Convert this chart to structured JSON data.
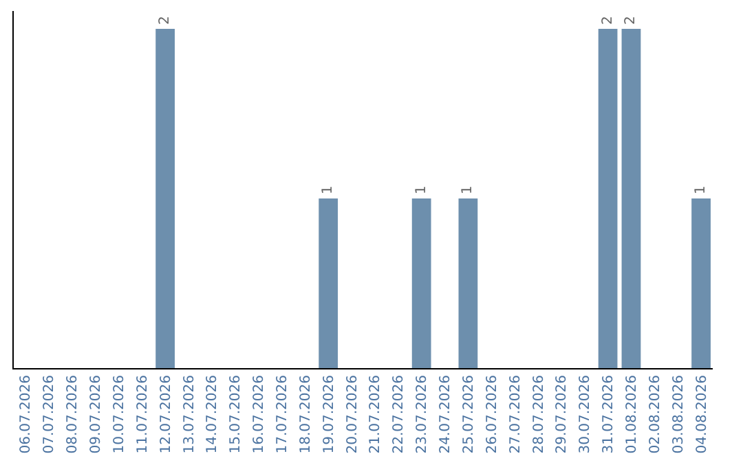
{
  "chart_data": {
    "type": "bar",
    "categories": [
      "06.07.2026",
      "07.07.2026",
      "08.07.2026",
      "09.07.2026",
      "10.07.2026",
      "11.07.2026",
      "12.07.2026",
      "13.07.2026",
      "14.07.2026",
      "15.07.2026",
      "16.07.2026",
      "17.07.2026",
      "18.07.2026",
      "19.07.2026",
      "20.07.2026",
      "21.07.2026",
      "22.07.2026",
      "23.07.2026",
      "24.07.2026",
      "25.07.2026",
      "26.07.2026",
      "27.07.2026",
      "28.07.2026",
      "29.07.2026",
      "30.07.2026",
      "31.07.2026",
      "01.08.2026",
      "02.08.2026",
      "03.08.2026",
      "04.08.2026"
    ],
    "values": [
      0,
      0,
      0,
      0,
      0,
      0,
      2,
      0,
      0,
      0,
      0,
      0,
      0,
      1,
      0,
      0,
      0,
      1,
      0,
      1,
      0,
      0,
      0,
      0,
      0,
      2,
      2,
      0,
      0,
      1
    ],
    "value_labels": [
      null,
      null,
      null,
      null,
      null,
      null,
      "2",
      null,
      null,
      null,
      null,
      null,
      null,
      "1",
      null,
      null,
      null,
      "1",
      null,
      "1",
      null,
      null,
      null,
      null,
      null,
      "2",
      "2",
      null,
      null,
      "1"
    ],
    "color": "#6d8fad",
    "grid": false,
    "legend": false,
    "tick_labels": "x"
  }
}
